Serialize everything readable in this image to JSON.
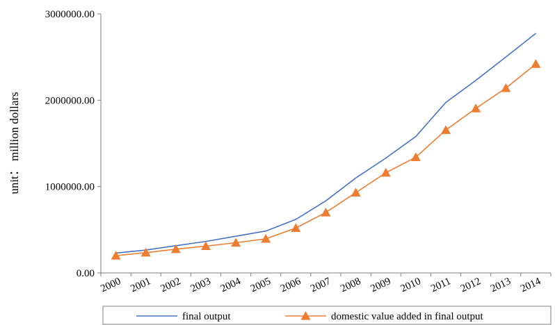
{
  "chart_data": {
    "type": "line",
    "title": "",
    "xlabel": "",
    "ylabel": "unit： million dollars",
    "categories": [
      "2000",
      "2001",
      "2002",
      "2003",
      "2004",
      "2005",
      "2006",
      "2007",
      "2008",
      "2009",
      "2010",
      "2011",
      "2012",
      "2013",
      "2014"
    ],
    "ylim": [
      0,
      3000000
    ],
    "y_ticks": [
      "0.00",
      "1000000.00",
      "2000000.00",
      "3000000.00"
    ],
    "y_tick_values": [
      0,
      1000000,
      2000000,
      3000000
    ],
    "grid": false,
    "legend_position": "bottom",
    "series": [
      {
        "name": "final output",
        "color": "#4472C4",
        "marker": "none",
        "values": [
          230000,
          265000,
          315000,
          365000,
          425000,
          485000,
          620000,
          835000,
          1100000,
          1330000,
          1580000,
          1975000,
          2230000,
          2500000,
          2775000
        ]
      },
      {
        "name": "domestic value added in final output",
        "color": "#ED7D31",
        "marker": "triangle",
        "values": [
          200000,
          235000,
          275000,
          310000,
          350000,
          395000,
          520000,
          700000,
          930000,
          1160000,
          1340000,
          1655000,
          1905000,
          2140000,
          2420000
        ]
      }
    ]
  }
}
